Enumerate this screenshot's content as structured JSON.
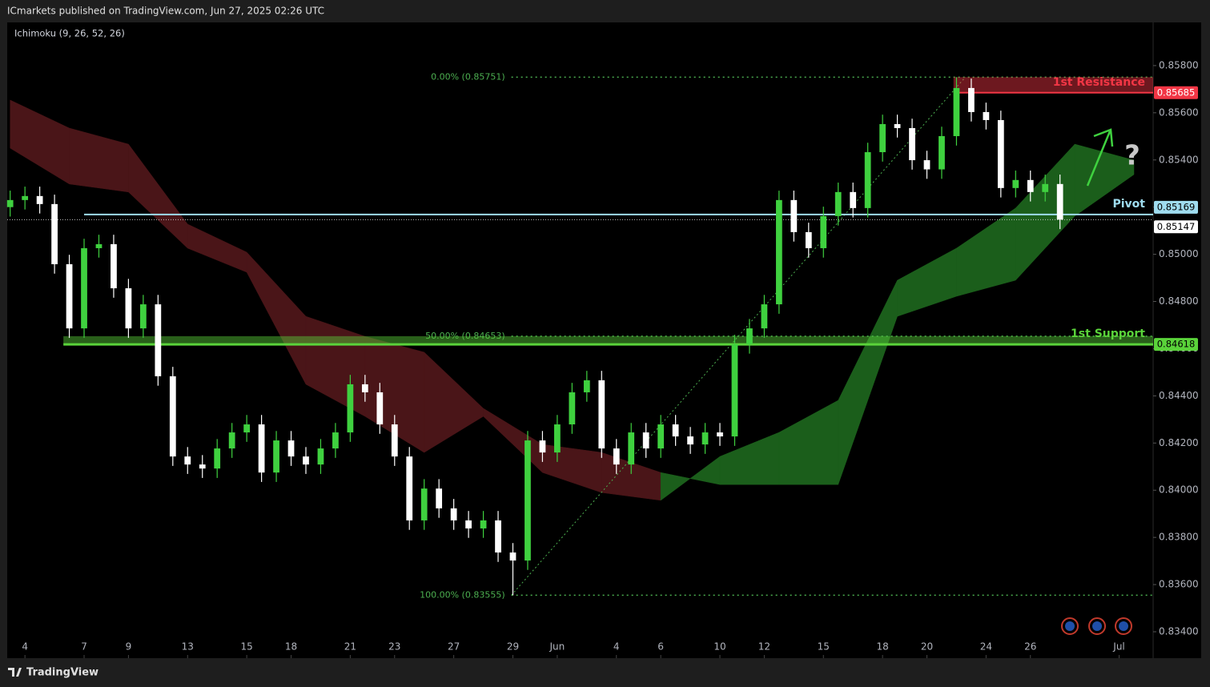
{
  "chart_data": {
    "type": "candlestick",
    "header": "ICmarkets published on TradingView.com, Jun 27, 2025 02:26 UTC",
    "indicator": "Ichimoku (9, 26, 52, 26)",
    "brand": "TradingView",
    "xlim": [
      -0.2,
      77.3
    ],
    "ylim": [
      0.83288,
      0.85983
    ],
    "yticks": [
      {
        "value": 0.834,
        "label": "0.83400"
      },
      {
        "value": 0.836,
        "label": "0.83600"
      },
      {
        "value": 0.838,
        "label": "0.83800"
      },
      {
        "value": 0.84,
        "label": "0.84000"
      },
      {
        "value": 0.842,
        "label": "0.84200"
      },
      {
        "value": 0.844,
        "label": "0.84400"
      },
      {
        "value": 0.846,
        "label": "0.84600"
      },
      {
        "value": 0.848,
        "label": "0.84800"
      },
      {
        "value": 0.85,
        "label": "0.85000"
      },
      {
        "value": 0.852,
        "label": "0.85200"
      },
      {
        "value": 0.854,
        "label": "0.85400"
      },
      {
        "value": 0.856,
        "label": "0.85600"
      },
      {
        "value": 0.858,
        "label": "0.85800"
      }
    ],
    "xticks": [
      {
        "value": 1,
        "label": "4"
      },
      {
        "value": 5,
        "label": "7"
      },
      {
        "value": 8,
        "label": "9"
      },
      {
        "value": 12,
        "label": "13"
      },
      {
        "value": 16,
        "label": "15"
      },
      {
        "value": 19,
        "label": "18"
      },
      {
        "value": 23,
        "label": "21"
      },
      {
        "value": 26,
        "label": "23"
      },
      {
        "value": 30,
        "label": "27"
      },
      {
        "value": 34,
        "label": "29"
      },
      {
        "value": 37,
        "label": "Jun"
      },
      {
        "value": 41,
        "label": "4"
      },
      {
        "value": 44,
        "label": "6"
      },
      {
        "value": 48,
        "label": "10"
      },
      {
        "value": 51,
        "label": "12"
      },
      {
        "value": 55,
        "label": "15"
      },
      {
        "value": 59,
        "label": "18"
      },
      {
        "value": 62,
        "label": "20"
      },
      {
        "value": 66,
        "label": "24"
      },
      {
        "value": 69,
        "label": "26"
      },
      {
        "value": 75,
        "label": "Jul"
      }
    ],
    "up_color": "#3fd13f",
    "down_color": "#ffffff",
    "open": [
      0.852,
      0.8523,
      0.85247,
      0.85213,
      0.84958,
      0.84686,
      0.85026,
      0.85043,
      0.84856,
      0.84686,
      0.84788,
      0.84483,
      0.84143,
      0.84109,
      0.84092,
      0.84177,
      0.84245,
      0.84279,
      0.84075,
      0.84211,
      0.84143,
      0.84109,
      0.84177,
      0.84245,
      0.84449,
      0.84415,
      0.84279,
      0.84143,
      0.83872,
      0.84007,
      0.83923,
      0.83872,
      0.83838,
      0.83872,
      0.83736,
      0.83702,
      0.84211,
      0.8416,
      0.84279,
      0.84415,
      0.84466,
      0.84177,
      0.84109,
      0.84245,
      0.84177,
      0.84279,
      0.84228,
      0.84194,
      0.84245,
      0.84228,
      0.84619,
      0.84686,
      0.84788,
      0.8523,
      0.85094,
      0.85026,
      0.85162,
      0.85264,
      0.85196,
      0.85433,
      0.85552,
      0.85535,
      0.85399,
      0.8536,
      0.85501,
      0.85705,
      0.85603,
      0.85569,
      0.85281,
      0.85315,
      0.85264,
      0.85298
    ],
    "high": [
      0.8527,
      0.85287,
      0.85287,
      0.85253,
      0.84998,
      0.85066,
      0.85083,
      0.85083,
      0.84896,
      0.84828,
      0.84828,
      0.84523,
      0.84183,
      0.84149,
      0.84217,
      0.84285,
      0.84319,
      0.84319,
      0.84251,
      0.84251,
      0.84183,
      0.84217,
      0.84285,
      0.84489,
      0.84489,
      0.84455,
      0.84319,
      0.84183,
      0.84047,
      0.84047,
      0.83963,
      0.83912,
      0.83912,
      0.83912,
      0.83776,
      0.84251,
      0.84251,
      0.84319,
      0.84455,
      0.84506,
      0.84506,
      0.84217,
      0.84285,
      0.84285,
      0.84319,
      0.84319,
      0.84268,
      0.84285,
      0.84285,
      0.84659,
      0.84726,
      0.84828,
      0.8527,
      0.8527,
      0.85134,
      0.85202,
      0.85304,
      0.85304,
      0.85473,
      0.85592,
      0.85592,
      0.85575,
      0.85439,
      0.85541,
      0.85751,
      0.85745,
      0.85643,
      0.85609,
      0.85355,
      0.85355,
      0.85338,
      0.85338
    ],
    "low": [
      0.8516,
      0.8519,
      0.85173,
      0.84918,
      0.84646,
      0.84646,
      0.84986,
      0.84816,
      0.84646,
      0.84646,
      0.84443,
      0.84103,
      0.84069,
      0.84052,
      0.84052,
      0.84137,
      0.84205,
      0.84035,
      0.84035,
      0.84103,
      0.84069,
      0.84069,
      0.84137,
      0.84205,
      0.84375,
      0.84239,
      0.84103,
      0.83832,
      0.83832,
      0.83883,
      0.83832,
      0.83798,
      0.83798,
      0.83696,
      0.83555,
      0.83662,
      0.8412,
      0.8412,
      0.84239,
      0.84375,
      0.84137,
      0.84069,
      0.84069,
      0.84137,
      0.84137,
      0.84188,
      0.84154,
      0.84154,
      0.84188,
      0.84188,
      0.84579,
      0.84646,
      0.84748,
      0.85054,
      0.84986,
      0.84986,
      0.85122,
      0.85156,
      0.85156,
      0.85393,
      0.85495,
      0.85359,
      0.8532,
      0.8532,
      0.85461,
      0.85563,
      0.85529,
      0.85241,
      0.85241,
      0.85224,
      0.85224,
      0.85107
    ],
    "close": [
      0.8523,
      0.85247,
      0.85213,
      0.84958,
      0.84686,
      0.85026,
      0.85043,
      0.84856,
      0.84686,
      0.84788,
      0.84483,
      0.84143,
      0.84109,
      0.84092,
      0.84177,
      0.84245,
      0.84279,
      0.84075,
      0.84211,
      0.84143,
      0.84109,
      0.84177,
      0.84245,
      0.84449,
      0.84415,
      0.84279,
      0.84143,
      0.83872,
      0.84007,
      0.83923,
      0.83872,
      0.83838,
      0.83872,
      0.83736,
      0.83702,
      0.84211,
      0.8416,
      0.84279,
      0.84415,
      0.84466,
      0.84177,
      0.84109,
      0.84245,
      0.84177,
      0.84279,
      0.84228,
      0.84194,
      0.84245,
      0.84228,
      0.84619,
      0.84686,
      0.84788,
      0.8523,
      0.85094,
      0.85026,
      0.85162,
      0.85264,
      0.85196,
      0.85433,
      0.85552,
      0.85535,
      0.85399,
      0.8536,
      0.85501,
      0.85705,
      0.85603,
      0.85569,
      0.85281,
      0.85315,
      0.85264,
      0.85298,
      0.85147
    ],
    "cloud": {
      "x": [
        0,
        4,
        8,
        12,
        16,
        20,
        24,
        28,
        32,
        36,
        40,
        44,
        48,
        52,
        56,
        60,
        64,
        68,
        72,
        76
      ],
      "span_a": [
        0.8545,
        0.85298,
        0.85264,
        0.85026,
        0.84924,
        0.84449,
        0.84313,
        0.8416,
        0.84313,
        0.84075,
        0.8399,
        0.83957,
        0.84143,
        0.84245,
        0.84381,
        0.8489,
        0.85026,
        0.85196,
        0.85467,
        0.85399
      ],
      "span_b": [
        0.85654,
        0.85535,
        0.85467,
        0.85128,
        0.85009,
        0.84737,
        0.84652,
        0.84585,
        0.84347,
        0.84194,
        0.8416,
        0.84075,
        0.84024,
        0.84024,
        0.84024,
        0.84737,
        0.84822,
        0.8489,
        0.85162,
        0.85338
      ],
      "bull_color": "#1b5e1b",
      "bear_color": "#4a1518"
    },
    "fib": {
      "color": "#4caf50",
      "from": 33.9,
      "to": 64.6,
      "levels": [
        {
          "value": 0.85751,
          "label": "0.00% (0.85751)"
        },
        {
          "value": 0.84653,
          "label": "50.00% (0.84653)"
        },
        {
          "value": 0.83555,
          "label": "100.00% (0.83555)"
        }
      ]
    },
    "levels": [
      {
        "label": "1st Resistance",
        "value": 0.85685,
        "zone_top": 0.85751,
        "from": 63.8,
        "color": "#f23645"
      },
      {
        "label": "Pivot",
        "value": 0.85169,
        "from": 5.0,
        "color": "#9fdcef"
      },
      {
        "label": "1st Support",
        "value": 0.84618,
        "zone_top": 0.84653,
        "from": 3.6,
        "color": "#5ad33a"
      }
    ],
    "last_price": 0.85147,
    "question": "?"
  }
}
